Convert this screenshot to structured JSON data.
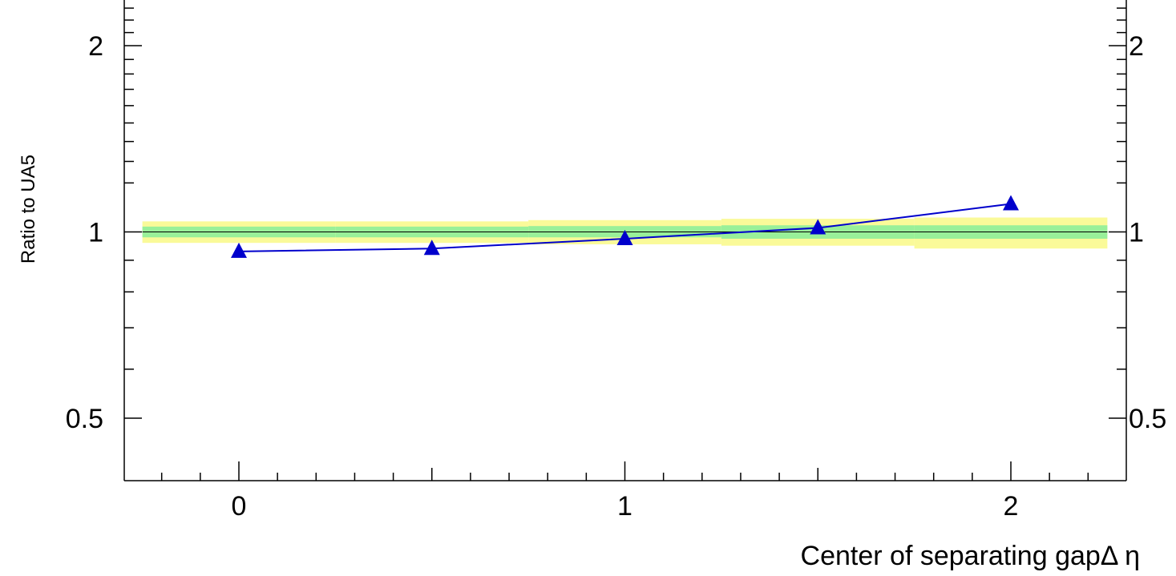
{
  "chart_data": {
    "type": "line",
    "xlabel": "Center of separating gapΔ η",
    "ylabel": "Ratio to UA5",
    "xlim": [
      -0.25,
      2.25
    ],
    "ylim": [
      0.35,
      2.5
    ],
    "log_y": true,
    "x_ticks": [
      {
        "value": 0,
        "label": "0"
      },
      {
        "value": 1,
        "label": "1"
      },
      {
        "value": 2,
        "label": "2"
      }
    ],
    "y_ticks": [
      {
        "value": 0.5,
        "label": "0.5"
      },
      {
        "value": 1,
        "label": "1"
      },
      {
        "value": 2,
        "label": "2"
      }
    ],
    "y_minor_ticks": [
      0.6,
      0.7,
      0.8,
      0.9,
      1.2,
      1.3,
      1.4,
      1.5,
      1.6,
      1.7,
      1.8,
      1.9,
      2.1,
      2.2,
      2.3,
      2.4
    ],
    "x_minor_step": 0.1,
    "reference_line": 1,
    "uncertainty_bands": [
      {
        "x_range": [
          -0.25,
          0.25
        ],
        "inner": [
          0.98,
          1.02
        ],
        "outer": [
          0.96,
          1.04
        ]
      },
      {
        "x_range": [
          0.25,
          0.75
        ],
        "inner": [
          0.98,
          1.02
        ],
        "outer": [
          0.96,
          1.04
        ]
      },
      {
        "x_range": [
          0.75,
          1.25
        ],
        "inner": [
          0.98,
          1.022
        ],
        "outer": [
          0.955,
          1.045
        ]
      },
      {
        "x_range": [
          1.25,
          1.75
        ],
        "inner": [
          0.975,
          1.025
        ],
        "outer": [
          0.95,
          1.05
        ]
      },
      {
        "x_range": [
          1.75,
          2.25
        ],
        "inner": [
          0.975,
          1.025
        ],
        "outer": [
          0.94,
          1.055
        ]
      }
    ],
    "series": [
      {
        "x": [
          0,
          0.5,
          1,
          1.5,
          2
        ],
        "y": [
          0.93,
          0.94,
          0.975,
          1.015,
          1.11
        ],
        "marker": "triangle",
        "color": "#0000cc"
      }
    ],
    "colors": {
      "inner_band": "#99f099",
      "outer_band": "#fafa99",
      "axis": "#000000",
      "line": "#0000cc"
    }
  }
}
